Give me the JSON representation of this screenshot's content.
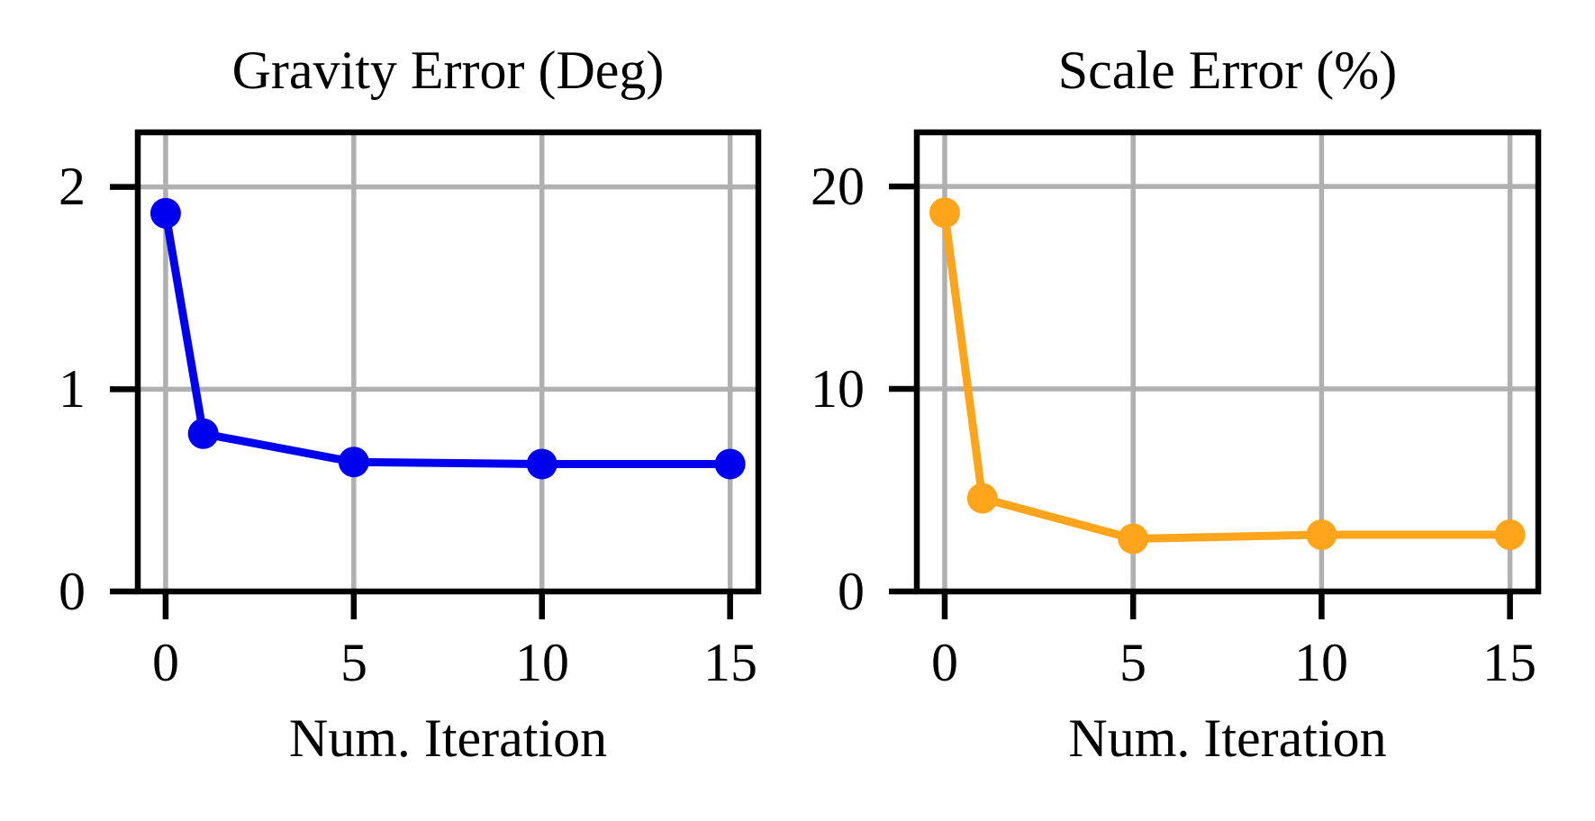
{
  "figure": {
    "background": "#FFFFFF",
    "grid_color": "#B0B0B0",
    "frame_color": "#000000",
    "text_color": "#000000",
    "grid_width": 5.5,
    "frame_width": 6.5,
    "tick_length": 31,
    "line_width": 9,
    "marker_radius": 17
  },
  "chart_data": [
    {
      "type": "line",
      "title": "Gravity Error (Deg)",
      "xlabel": "Num. Iteration",
      "ylabel": "",
      "x": [
        0,
        1,
        5,
        10,
        15
      ],
      "values": [
        1.87,
        0.78,
        0.64,
        0.63,
        0.63
      ],
      "series_color": "#0000EE",
      "marker": "circle",
      "xticks": {
        "values": [
          0,
          5,
          10,
          15
        ],
        "labels": [
          "0",
          "5",
          "10",
          "15"
        ]
      },
      "yticks": {
        "values": [
          0,
          1,
          2
        ],
        "labels": [
          "0",
          "1",
          "2"
        ]
      },
      "xlim": [
        -0.74,
        15.75
      ],
      "ylim": [
        0,
        2.27
      ],
      "grid": true,
      "legend": "none"
    },
    {
      "type": "line",
      "title": "Scale Error (%)",
      "xlabel": "Num. Iteration",
      "ylabel": "",
      "x": [
        0,
        1,
        5,
        10,
        15
      ],
      "values": [
        18.7,
        4.6,
        2.6,
        2.8,
        2.8
      ],
      "series_color": "#FFA51C",
      "marker": "circle",
      "xticks": {
        "values": [
          0,
          5,
          10,
          15
        ],
        "labels": [
          "0",
          "5",
          "10",
          "15"
        ]
      },
      "yticks": {
        "values": [
          0,
          10,
          20
        ],
        "labels": [
          "0",
          "10",
          "20"
        ]
      },
      "xlim": [
        -0.74,
        15.75
      ],
      "ylim": [
        0,
        22.67
      ],
      "grid": true,
      "legend": "none"
    }
  ]
}
